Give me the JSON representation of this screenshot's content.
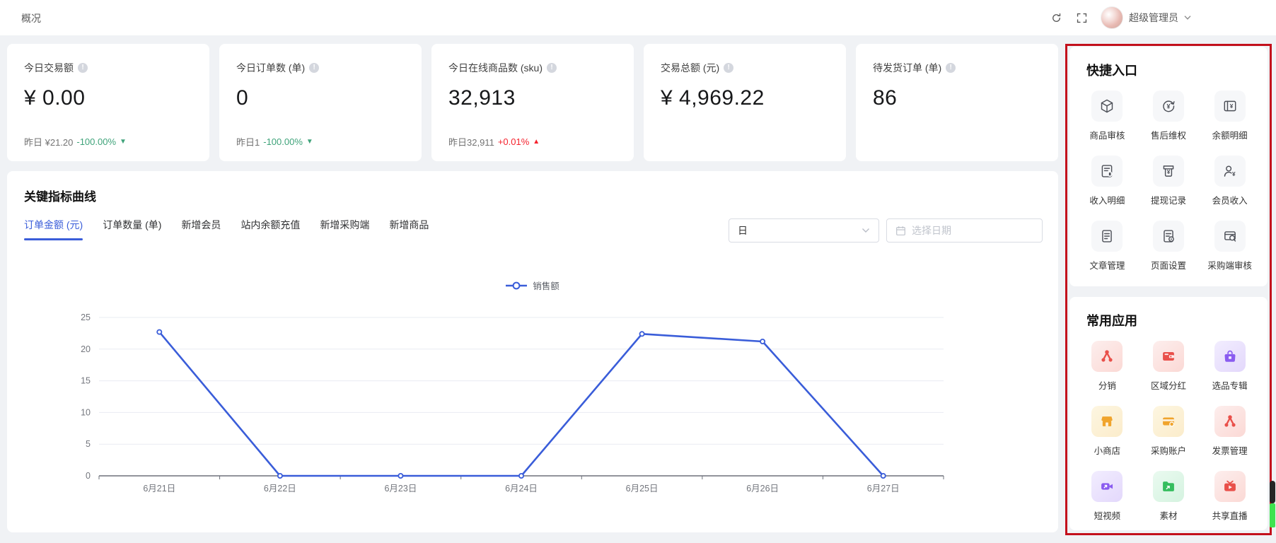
{
  "topbar": {
    "title": "概况",
    "user": "超级管理员"
  },
  "stat_cards": [
    {
      "label": "今日交易额",
      "value": "¥ 0.00",
      "yesterday": "昨日 ¥21.20",
      "change": "-100.00%",
      "trend": "down",
      "trend_color": "green"
    },
    {
      "label": "今日订单数 (单)",
      "value": "0",
      "yesterday": "昨日1",
      "change": "-100.00%",
      "trend": "down",
      "trend_color": "green"
    },
    {
      "label": "今日在线商品数 (sku)",
      "value": "32,913",
      "yesterday": "昨日32,911",
      "change": "+0.01%",
      "trend": "up",
      "trend_color": "red"
    },
    {
      "label": "交易总额 (元)",
      "value": "¥ 4,969.22"
    },
    {
      "label": "待发货订单 (单)",
      "value": "86"
    }
  ],
  "chart_section": {
    "title": "关键指标曲线",
    "tabs": [
      {
        "label": "订单金额 (元)",
        "active": true
      },
      {
        "label": "订单数量 (单)",
        "active": false
      },
      {
        "label": "新增会员",
        "active": false
      },
      {
        "label": "站内余额充值",
        "active": false
      },
      {
        "label": "新增采购端",
        "active": false
      },
      {
        "label": "新增商品",
        "active": false
      }
    ],
    "period_select_value": "日",
    "date_placeholder": "选择日期"
  },
  "chart_data": {
    "type": "line",
    "legend": [
      "销售额"
    ],
    "legend_position": "top-center",
    "categories": [
      "6月21日",
      "6月22日",
      "6月23日",
      "6月24日",
      "6月25日",
      "6月26日",
      "6月27日"
    ],
    "series": [
      {
        "name": "销售额",
        "values": [
          22.7,
          0,
          0,
          0,
          22.4,
          21.2,
          0
        ]
      }
    ],
    "ylim": [
      0,
      25
    ],
    "yticks": [
      0,
      5,
      10,
      15,
      20,
      25
    ],
    "grid": true,
    "line_color": "#3a5dd9"
  },
  "sidebar": {
    "quick_entry": {
      "title": "快捷入口",
      "items": [
        {
          "label": "商品审核",
          "icon": "cube-icon"
        },
        {
          "label": "售后维权",
          "icon": "refund-cycle-icon"
        },
        {
          "label": "余额明细",
          "icon": "balance-detail-icon"
        },
        {
          "label": "收入明细",
          "icon": "income-detail-icon"
        },
        {
          "label": "提现记录",
          "icon": "withdraw-record-icon"
        },
        {
          "label": "会员收入",
          "icon": "member-income-icon"
        },
        {
          "label": "文章管理",
          "icon": "article-icon"
        },
        {
          "label": "页面设置",
          "icon": "page-settings-icon"
        },
        {
          "label": "采购端审核",
          "icon": "purchase-review-icon"
        }
      ]
    },
    "common_apps": {
      "title": "常用应用",
      "items": [
        {
          "label": "分销",
          "icon": "share-network-icon",
          "tone": "red"
        },
        {
          "label": "区域分红",
          "icon": "wallet-icon",
          "tone": "red"
        },
        {
          "label": "选品专辑",
          "icon": "shopping-bag-icon",
          "tone": "purple"
        },
        {
          "label": "小商店",
          "icon": "storefront-icon",
          "tone": "yellow"
        },
        {
          "label": "采购账户",
          "icon": "credit-card-icon",
          "tone": "yellow"
        },
        {
          "label": "发票管理",
          "icon": "invoice-network-icon",
          "tone": "red"
        },
        {
          "label": "短视频",
          "icon": "video-camera-icon",
          "tone": "purple"
        },
        {
          "label": "素材",
          "icon": "folder-icon",
          "tone": "green"
        },
        {
          "label": "共享直播",
          "icon": "live-tv-icon",
          "tone": "red"
        }
      ]
    }
  },
  "colors": {
    "accent_blue": "#3a5dd9",
    "up_red": "#f5222d",
    "down_green": "#3fa37a",
    "annotation_red": "#c3101c",
    "edge_green": "#3fe34f"
  }
}
